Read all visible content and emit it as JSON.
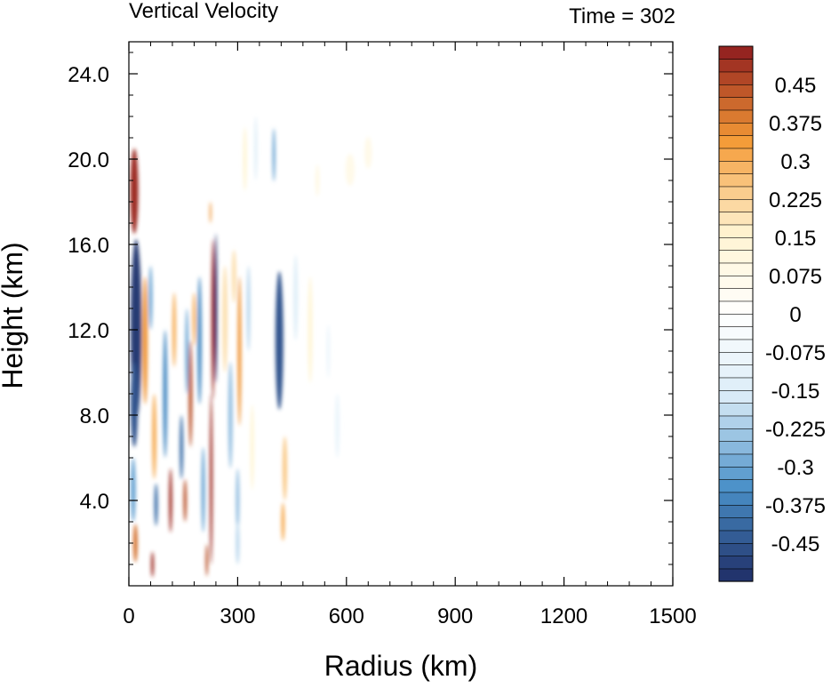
{
  "chart_data": {
    "type": "heatmap",
    "title": "Vertical Velocity",
    "subtitle": "Time = 302",
    "xlabel": "Radius (km)",
    "ylabel": "Height (km)",
    "xlim": [
      0,
      1500
    ],
    "ylim": [
      0,
      25.5
    ],
    "xticks": [
      0,
      300,
      600,
      900,
      1200,
      1500
    ],
    "xtick_labels": [
      "0",
      "300",
      "600",
      "900",
      "1200",
      "1500"
    ],
    "yticks": [
      4,
      8,
      12,
      16,
      20,
      24
    ],
    "ytick_labels": [
      "4.0",
      "8.0",
      "12.0",
      "16.0",
      "20.0",
      "24.0"
    ],
    "colorbar": {
      "levels": [
        -0.525,
        -0.5,
        -0.475,
        -0.45,
        -0.425,
        -0.4,
        -0.375,
        -0.35,
        -0.325,
        -0.3,
        -0.275,
        -0.25,
        -0.225,
        -0.2,
        -0.175,
        -0.15,
        -0.125,
        -0.1,
        -0.075,
        -0.05,
        -0.025,
        0,
        0.025,
        0.05,
        0.075,
        0.1,
        0.125,
        0.15,
        0.175,
        0.2,
        0.225,
        0.25,
        0.275,
        0.3,
        0.325,
        0.35,
        0.375,
        0.4,
        0.425,
        0.45,
        0.475,
        0.5,
        0.525
      ],
      "labels": [
        {
          "value": 0.45,
          "text": "0.45"
        },
        {
          "value": 0.375,
          "text": "0.375"
        },
        {
          "value": 0.3,
          "text": "0.3"
        },
        {
          "value": 0.225,
          "text": "0.225"
        },
        {
          "value": 0.15,
          "text": "0.15"
        },
        {
          "value": 0.075,
          "text": "0.075"
        },
        {
          "value": 0,
          "text": "0"
        },
        {
          "value": -0.075,
          "text": "-0.075"
        },
        {
          "value": -0.15,
          "text": "-0.15"
        },
        {
          "value": -0.225,
          "text": "-0.225"
        },
        {
          "value": -0.3,
          "text": "-0.3"
        },
        {
          "value": -0.375,
          "text": "-0.375"
        },
        {
          "value": -0.45,
          "text": "-0.45"
        }
      ],
      "colors": {
        "neg_max": "#1f2d66",
        "neg_mid": "#4a90c8",
        "neg_low": "#dcedf8",
        "zero": "#ffffff",
        "pos_low": "#fff4d2",
        "pos_mid": "#f49a36",
        "pos_max": "#8e1b1e"
      }
    },
    "features": [
      {
        "x": 15,
        "y": 18.5,
        "width": 22,
        "height": 4.0,
        "value": 0.5
      },
      {
        "x": 20,
        "y": 12.0,
        "width": 30,
        "height": 8.5,
        "value": -0.5
      },
      {
        "x": 15,
        "y": 8.5,
        "width": 20,
        "height": 4.0,
        "value": -0.45
      },
      {
        "x": 12,
        "y": 4.5,
        "width": 14,
        "height": 3.0,
        "value": -0.3
      },
      {
        "x": 18,
        "y": 2.0,
        "width": 12,
        "height": 1.8,
        "value": 0.4
      },
      {
        "x": 45,
        "y": 11.5,
        "width": 14,
        "height": 6.0,
        "value": 0.35
      },
      {
        "x": 60,
        "y": 13.5,
        "width": 10,
        "height": 3.0,
        "value": -0.3
      },
      {
        "x": 70,
        "y": 7.0,
        "width": 12,
        "height": 4.0,
        "value": 0.3
      },
      {
        "x": 75,
        "y": 3.8,
        "width": 10,
        "height": 2.0,
        "value": -0.4
      },
      {
        "x": 65,
        "y": 1.0,
        "width": 8,
        "height": 1.2,
        "value": 0.5
      },
      {
        "x": 100,
        "y": 9.0,
        "width": 12,
        "height": 6.0,
        "value": -0.35
      },
      {
        "x": 115,
        "y": 4.0,
        "width": 9,
        "height": 3.0,
        "value": 0.5
      },
      {
        "x": 125,
        "y": 12.0,
        "width": 10,
        "height": 3.5,
        "value": 0.3
      },
      {
        "x": 145,
        "y": 6.5,
        "width": 10,
        "height": 3.0,
        "value": -0.4
      },
      {
        "x": 155,
        "y": 4.0,
        "width": 9,
        "height": 2.0,
        "value": 0.45
      },
      {
        "x": 160,
        "y": 11.0,
        "width": 9,
        "height": 4.0,
        "value": -0.3
      },
      {
        "x": 170,
        "y": 9.0,
        "width": 10,
        "height": 5.0,
        "value": 0.45
      },
      {
        "x": 180,
        "y": 12.5,
        "width": 9,
        "height": 2.5,
        "value": 0.3
      },
      {
        "x": 195,
        "y": 11.5,
        "width": 12,
        "height": 6.0,
        "value": -0.35
      },
      {
        "x": 205,
        "y": 4.5,
        "width": 10,
        "height": 4.0,
        "value": -0.3
      },
      {
        "x": 215,
        "y": 1.2,
        "width": 7,
        "height": 1.5,
        "value": 0.45
      },
      {
        "x": 227,
        "y": 5.0,
        "width": 8,
        "height": 8.0,
        "value": 0.5
      },
      {
        "x": 232,
        "y": 12.5,
        "width": 9,
        "height": 7.5,
        "value": 0.5
      },
      {
        "x": 240,
        "y": 13.0,
        "width": 8,
        "height": 7.0,
        "value": -0.5
      },
      {
        "x": 225,
        "y": 17.5,
        "width": 5,
        "height": 1.0,
        "value": 0.35
      },
      {
        "x": 265,
        "y": 12.5,
        "width": 14,
        "height": 5.0,
        "value": 0.2
      },
      {
        "x": 280,
        "y": 8.0,
        "width": 12,
        "height": 5.0,
        "value": -0.25
      },
      {
        "x": 290,
        "y": 14.5,
        "width": 12,
        "height": 2.5,
        "value": 0.2
      },
      {
        "x": 305,
        "y": 11.0,
        "width": 10,
        "height": 7.0,
        "value": 0.35
      },
      {
        "x": 300,
        "y": 4.0,
        "width": 10,
        "height": 3.0,
        "value": -0.25
      },
      {
        "x": 320,
        "y": 20.0,
        "width": 10,
        "height": 3.0,
        "value": 0.15
      },
      {
        "x": 300,
        "y": 2.0,
        "width": 10,
        "height": 2.0,
        "value": -0.2
      },
      {
        "x": 340,
        "y": 6.5,
        "width": 10,
        "height": 4.0,
        "value": 0.15
      },
      {
        "x": 330,
        "y": 13.0,
        "width": 10,
        "height": 4.0,
        "value": -0.2
      },
      {
        "x": 350,
        "y": 20.5,
        "width": 8,
        "height": 3.0,
        "value": -0.15
      },
      {
        "x": 400,
        "y": 20.2,
        "width": 8,
        "height": 2.5,
        "value": -0.3
      },
      {
        "x": 415,
        "y": 11.5,
        "width": 22,
        "height": 6.5,
        "value": -0.45
      },
      {
        "x": 430,
        "y": 5.5,
        "width": 12,
        "height": 3.0,
        "value": 0.25
      },
      {
        "x": 425,
        "y": 3.0,
        "width": 10,
        "height": 1.8,
        "value": 0.3
      },
      {
        "x": 460,
        "y": 13.5,
        "width": 12,
        "height": 4.0,
        "value": -0.15
      },
      {
        "x": 500,
        "y": 12.0,
        "width": 12,
        "height": 5.0,
        "value": 0.15
      },
      {
        "x": 520,
        "y": 19.0,
        "width": 10,
        "height": 1.5,
        "value": 0.1
      },
      {
        "x": 575,
        "y": 7.5,
        "width": 12,
        "height": 3.0,
        "value": -0.1
      },
      {
        "x": 610,
        "y": 19.5,
        "width": 25,
        "height": 1.5,
        "value": 0.08
      },
      {
        "x": 660,
        "y": 20.3,
        "width": 20,
        "height": 1.5,
        "value": 0.08
      },
      {
        "x": 550,
        "y": 11.0,
        "width": 8,
        "height": 2.5,
        "value": -0.1
      }
    ]
  }
}
